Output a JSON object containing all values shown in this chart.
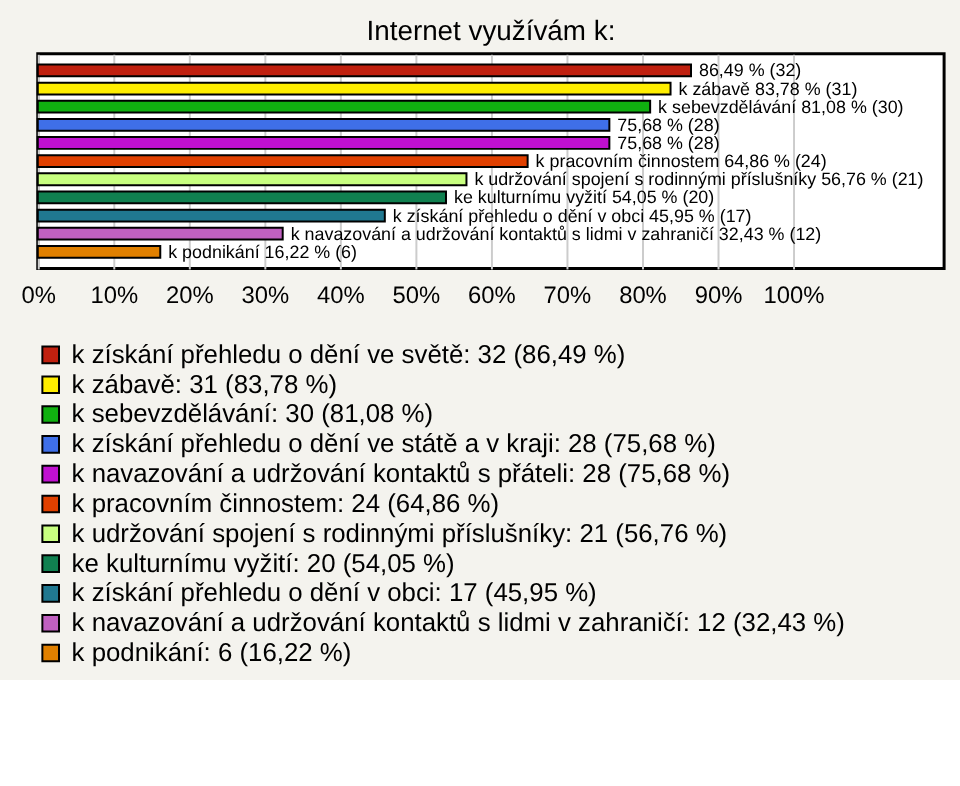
{
  "chart_data": {
    "type": "bar",
    "orientation": "horizontal",
    "title": "Internet využívám k:",
    "categories": [
      null
    ],
    "series": [
      {
        "name": "k získání přehledu o dění ve světě: 32 (86,49 %)",
        "color": "#c0200f",
        "values": [
          86.49
        ],
        "value_labels": [
          "86,49 % (32)"
        ]
      },
      {
        "name": "k zábavě: 31 (83,78 %)",
        "color": "#ffee00",
        "values": [
          83.78
        ],
        "value_labels": [
          "k zábavě 83,78 % (31)"
        ]
      },
      {
        "name": "k sebevzdělávání: 30 (81,08 %)",
        "color": "#10b010",
        "values": [
          81.08
        ],
        "value_labels": [
          "k sebevzdělávání 81,08 % (30)"
        ]
      },
      {
        "name": "k získání přehledu o dění ve státě a v kraji: 28 (75,68 %)",
        "color": "#3f6fe8",
        "values": [
          75.68
        ],
        "value_labels": [
          "75,68 % (28)"
        ]
      },
      {
        "name": "k navazování a udržování kontaktů s přáteli: 28 (75,68 %)",
        "color": "#c010d0",
        "values": [
          75.68
        ],
        "value_labels": [
          "75,68 % (28)"
        ]
      },
      {
        "name": "k pracovním činnostem: 24 (64,86 %)",
        "color": "#e04000",
        "values": [
          64.86
        ],
        "value_labels": [
          "k pracovním činnostem 64,86 % (24)"
        ]
      },
      {
        "name": "k udržování spojení s rodinnými příslušníky: 21 (56,76 %)",
        "color": "#c8ff80",
        "values": [
          56.76
        ],
        "value_labels": [
          "k udržování spojení s rodinnými příslušníky 56,76 % (21)"
        ]
      },
      {
        "name": "ke kulturnímu vyžití: 20 (54,05 %)",
        "color": "#108050",
        "values": [
          54.05
        ],
        "value_labels": [
          "ke kulturnímu vyžití 54,05 % (20)"
        ]
      },
      {
        "name": "k získání přehledu o dění v obci: 17 (45,95 %)",
        "color": "#207890",
        "values": [
          45.95
        ],
        "value_labels": [
          "k získání přehledu o dění v obci 45,95 % (17)"
        ]
      },
      {
        "name": "k navazování a udržování kontaktů s lidmi v zahraničí: 12 (32,43 %)",
        "color": "#c060c0",
        "values": [
          32.43
        ],
        "value_labels": [
          "k navazování a udržování kontaktů s lidmi v zahraničí 32,43 % (12)"
        ]
      },
      {
        "name": "k podnikání: 6 (16,22 %)",
        "color": "#e08000",
        "values": [
          16.22
        ],
        "value_labels": [
          "k podnikání 16,22 % (6)"
        ]
      }
    ],
    "xlim": [
      0,
      120
    ],
    "xticks": [
      {
        "value": 0,
        "label": "0%"
      },
      {
        "value": 10,
        "label": "10%"
      },
      {
        "value": 20,
        "label": "20%"
      },
      {
        "value": 30,
        "label": "30%"
      },
      {
        "value": 40,
        "label": "40%"
      },
      {
        "value": 50,
        "label": "50%"
      },
      {
        "value": 60,
        "label": "60%"
      },
      {
        "value": 70,
        "label": "70%"
      },
      {
        "value": 80,
        "label": "80%"
      },
      {
        "value": 90,
        "label": "90%"
      },
      {
        "value": 100,
        "label": "100%"
      }
    ],
    "grid": "x",
    "legend": "bottom"
  }
}
